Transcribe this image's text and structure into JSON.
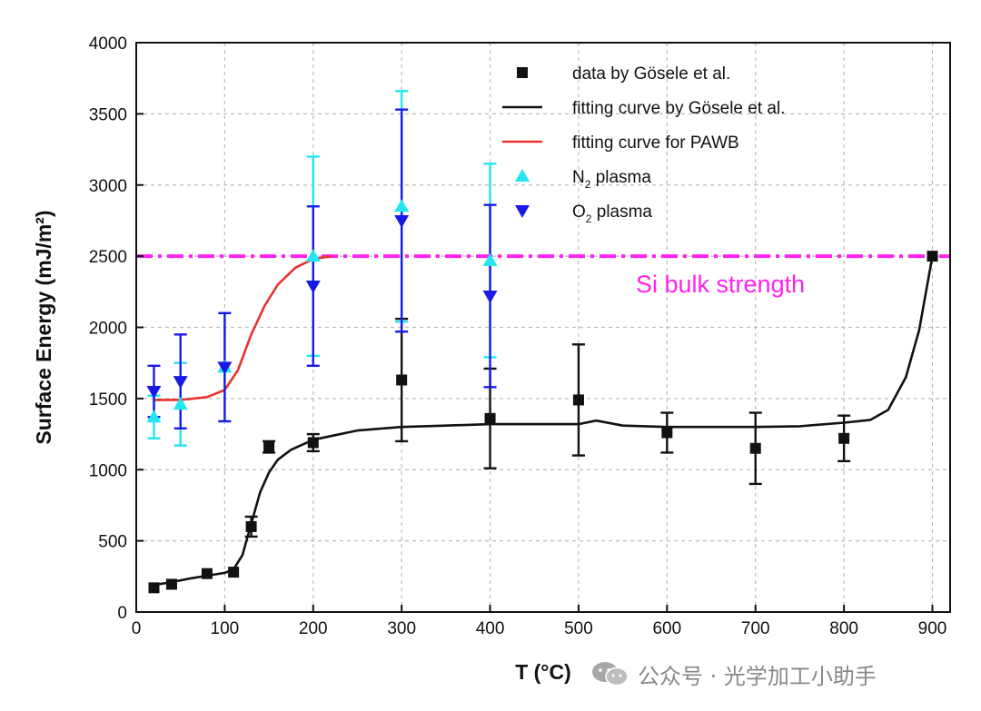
{
  "chart_data": {
    "type": "scatter",
    "title": "",
    "xlabel": "T (°C)",
    "ylabel": "Surface Energy (mJ/m²)",
    "xlim": [
      0,
      920
    ],
    "ylim": [
      0,
      4000
    ],
    "xticks": [
      0,
      100,
      200,
      300,
      400,
      500,
      600,
      700,
      800,
      900
    ],
    "yticks": [
      0,
      500,
      1000,
      1500,
      2000,
      2500,
      3000,
      3500,
      4000
    ],
    "grid": true,
    "legend_position": "top-right",
    "series": [
      {
        "name": "data by Gösele et al.",
        "kind": "scatter",
        "marker": "square",
        "color": "#111111",
        "points": [
          {
            "x": 20,
            "y": 170
          },
          {
            "x": 40,
            "y": 195
          },
          {
            "x": 80,
            "y": 270
          },
          {
            "x": 110,
            "y": 280
          },
          {
            "x": 130,
            "y": 600,
            "err": 70
          },
          {
            "x": 150,
            "y": 1160,
            "err": 40
          },
          {
            "x": 200,
            "y": 1190,
            "err": 60
          },
          {
            "x": 300,
            "y": 1630,
            "err": 430
          },
          {
            "x": 400,
            "y": 1360,
            "err": 350
          },
          {
            "x": 500,
            "y": 1490,
            "err": 390
          },
          {
            "x": 600,
            "y": 1260,
            "err": 140
          },
          {
            "x": 700,
            "y": 1150,
            "err": 250
          },
          {
            "x": 800,
            "y": 1220,
            "err": 160
          },
          {
            "x": 900,
            "y": 2500
          }
        ]
      },
      {
        "name": "fitting curve by Gösele et al.",
        "kind": "line",
        "color": "#111111",
        "points": [
          {
            "x": 20,
            "y": 190
          },
          {
            "x": 40,
            "y": 210
          },
          {
            "x": 60,
            "y": 235
          },
          {
            "x": 80,
            "y": 255
          },
          {
            "x": 100,
            "y": 275
          },
          {
            "x": 110,
            "y": 300
          },
          {
            "x": 120,
            "y": 400
          },
          {
            "x": 130,
            "y": 620
          },
          {
            "x": 140,
            "y": 840
          },
          {
            "x": 150,
            "y": 980
          },
          {
            "x": 160,
            "y": 1070
          },
          {
            "x": 175,
            "y": 1140
          },
          {
            "x": 200,
            "y": 1210
          },
          {
            "x": 250,
            "y": 1275
          },
          {
            "x": 300,
            "y": 1300
          },
          {
            "x": 350,
            "y": 1310
          },
          {
            "x": 400,
            "y": 1320
          },
          {
            "x": 450,
            "y": 1320
          },
          {
            "x": 500,
            "y": 1320
          },
          {
            "x": 520,
            "y": 1345
          },
          {
            "x": 550,
            "y": 1310
          },
          {
            "x": 600,
            "y": 1300
          },
          {
            "x": 650,
            "y": 1300
          },
          {
            "x": 700,
            "y": 1300
          },
          {
            "x": 750,
            "y": 1305
          },
          {
            "x": 800,
            "y": 1330
          },
          {
            "x": 830,
            "y": 1350
          },
          {
            "x": 850,
            "y": 1420
          },
          {
            "x": 870,
            "y": 1650
          },
          {
            "x": 885,
            "y": 1980
          },
          {
            "x": 900,
            "y": 2500
          }
        ]
      },
      {
        "name": "fitting curve for PAWB",
        "kind": "line",
        "color": "#e8322c",
        "points": [
          {
            "x": 20,
            "y": 1490
          },
          {
            "x": 50,
            "y": 1490
          },
          {
            "x": 80,
            "y": 1510
          },
          {
            "x": 100,
            "y": 1560
          },
          {
            "x": 115,
            "y": 1700
          },
          {
            "x": 130,
            "y": 1950
          },
          {
            "x": 145,
            "y": 2150
          },
          {
            "x": 160,
            "y": 2300
          },
          {
            "x": 180,
            "y": 2420
          },
          {
            "x": 200,
            "y": 2480
          },
          {
            "x": 220,
            "y": 2500
          }
        ]
      },
      {
        "name": "N₂ plasma",
        "kind": "scatter",
        "marker": "triangle-up",
        "color": "#22e6f0",
        "points": [
          {
            "x": 20,
            "y": 1370,
            "err": 150
          },
          {
            "x": 50,
            "y": 1460,
            "err": 290
          },
          {
            "x": 100,
            "y": 1720,
            "err": 380
          },
          {
            "x": 200,
            "y": 2500,
            "err": 700
          },
          {
            "x": 300,
            "y": 2850,
            "err": 810
          },
          {
            "x": 400,
            "y": 2470,
            "err": 680
          }
        ]
      },
      {
        "name": "O₂ plasma",
        "kind": "scatter",
        "marker": "triangle-down",
        "color": "#1a1ae6",
        "points": [
          {
            "x": 20,
            "y": 1550,
            "err": 180
          },
          {
            "x": 50,
            "y": 1620,
            "err": 330
          },
          {
            "x": 100,
            "y": 1720,
            "err": 380
          },
          {
            "x": 200,
            "y": 2290,
            "err": 560
          },
          {
            "x": 300,
            "y": 2750,
            "err": 780
          },
          {
            "x": 400,
            "y": 2220,
            "err": 640
          }
        ]
      }
    ],
    "reference_line": {
      "y": 2500,
      "style": "dash-dot",
      "color": "#ff22ee",
      "label": "Si bulk strength"
    },
    "legend": [
      {
        "symbol": "square",
        "color": "#111111",
        "text": "data by Gösele et al."
      },
      {
        "symbol": "line",
        "color": "#111111",
        "text": "fitting curve by Gösele et al."
      },
      {
        "symbol": "line",
        "color": "#e8322c",
        "text": "fitting curve for PAWB"
      },
      {
        "symbol": "triangle-up",
        "color": "#22e6f0",
        "text": "N",
        "sub": "2",
        "after": " plasma"
      },
      {
        "symbol": "triangle-down",
        "color": "#1a1ae6",
        "text": "O",
        "sub": "2",
        "after": " plasma"
      }
    ]
  },
  "watermark": {
    "text": "公众号 · 光学加工小助手",
    "icon": "wechat-icon"
  }
}
